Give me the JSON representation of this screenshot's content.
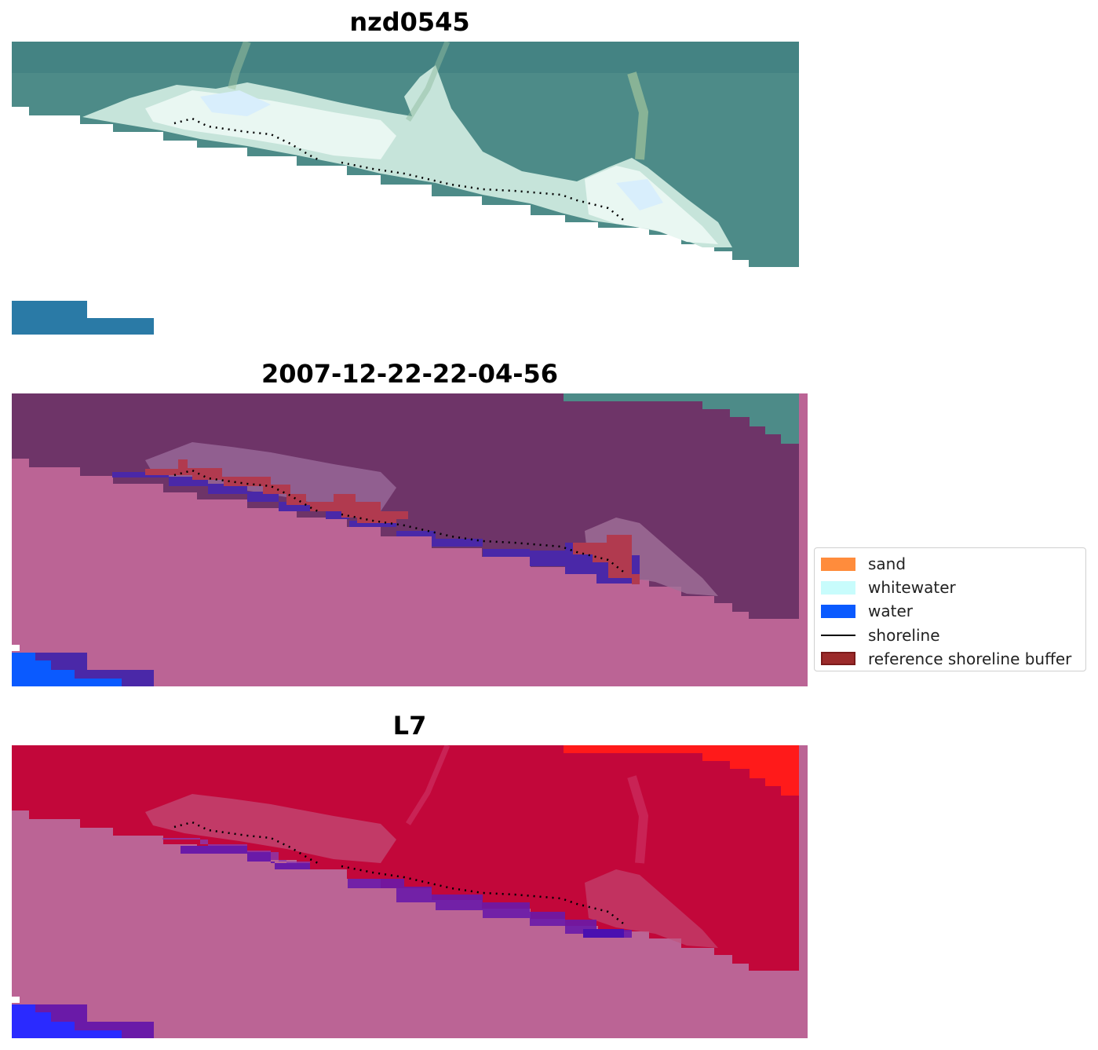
{
  "titles": {
    "panel1": "nzd0545",
    "panel2": "2007-12-22-22-04-56",
    "panel3": "L7"
  },
  "legend": {
    "items": [
      {
        "label": "sand",
        "type": "patch",
        "color": "#ff8c3c"
      },
      {
        "label": "whitewater",
        "type": "patch",
        "color": "#c8fcfc"
      },
      {
        "label": "water",
        "type": "patch",
        "color": "#0a5aff"
      },
      {
        "label": "shoreline",
        "type": "line",
        "color": "#000000"
      },
      {
        "label": "reference shoreline buffer",
        "type": "patch",
        "color": "#9b2a2a"
      }
    ]
  },
  "colors": {
    "forest": "#4d8b88",
    "forest_dark": "#3f7f80",
    "sea_blue": "#2a7aa6",
    "white_beach": "#e9f7f2",
    "pale_beach": "#c6e4da",
    "overlay_purple": "#6e3468",
    "overlay_pink": "#bb6495",
    "overlay_water": "#4a28a8",
    "overlay_buffer": "#b13a4f",
    "ndwi_red": "#c2073a",
    "ndwi_bright_red": "#ff1a1a",
    "ndwi_pink": "#bb6495",
    "ndwi_violet": "#6a1aa8",
    "ndwi_blue": "#2a2aff"
  }
}
